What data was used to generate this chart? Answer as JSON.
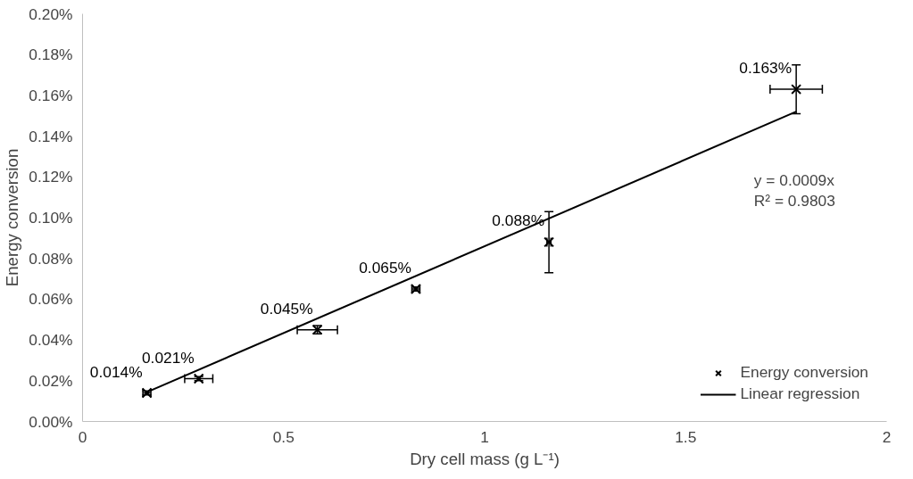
{
  "chart_data": {
    "type": "scatter",
    "xlabel": "Dry cell mass (g L⁻¹)",
    "ylabel": "Energy conversion",
    "xlim": [
      0,
      2
    ],
    "xticks": [
      0,
      0.5,
      1,
      1.5,
      2
    ],
    "ylim": [
      0,
      0.2
    ],
    "yticks": [
      {
        "value": 0,
        "label": "0.00%"
      },
      {
        "value": 0.02,
        "label": "0.02%"
      },
      {
        "value": 0.04,
        "label": "0.04%"
      },
      {
        "value": 0.06,
        "label": "0.06%"
      },
      {
        "value": 0.08,
        "label": "0.08%"
      },
      {
        "value": 0.1,
        "label": "0.10%"
      },
      {
        "value": 0.12,
        "label": "0.12%"
      },
      {
        "value": 0.14,
        "label": "0.14%"
      },
      {
        "value": 0.16,
        "label": "0.16%"
      },
      {
        "value": 0.18,
        "label": "0.18%"
      },
      {
        "value": 0.2,
        "label": "0.20%"
      }
    ],
    "series": [
      {
        "name": "Energy conversion",
        "color": "#000000",
        "marker": "cross",
        "x": [
          0.16,
          0.289,
          0.584,
          0.829,
          1.16,
          1.775
        ],
        "values": [
          0.014,
          0.021,
          0.045,
          0.065,
          0.088,
          0.163
        ],
        "errors": [
          0.001,
          0.001,
          0.002,
          0.001,
          0.015,
          0.012
        ],
        "xerrors": [
          0.01,
          0.035,
          0.05,
          0.01,
          0.005,
          0.065
        ],
        "value_labels": [
          "0.014%",
          "0.021%",
          "0.045%",
          "0.065%",
          "0.088%",
          "0.163%"
        ]
      },
      {
        "name": "Linear regression",
        "type": "line",
        "color": "#000000",
        "line_style": "solid",
        "x": [
          0.16,
          1.775
        ],
        "values": [
          0.0144,
          0.152
        ]
      }
    ],
    "annotations": [
      "y = 0.0009x",
      "R² = 0.9803"
    ],
    "grid": false,
    "legend": "bottom right"
  }
}
